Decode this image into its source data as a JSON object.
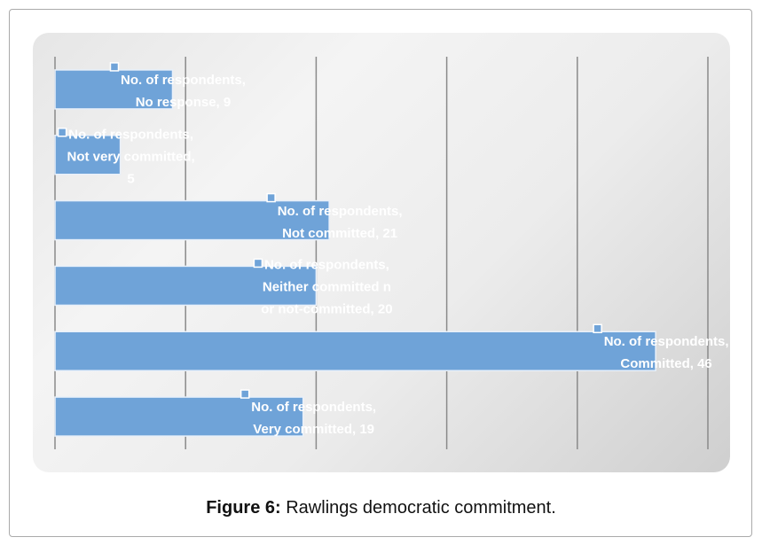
{
  "chart_data": {
    "type": "bar",
    "orientation": "horizontal",
    "values": [
      9,
      5,
      21,
      20,
      46,
      19
    ],
    "value_labels": [
      "No. of respondents, No response, 9",
      "No. of respondents, Not very committed, 5",
      "No. of respondents, Not committed, 21",
      "No. of respondents, Neither committed nor not-committed, 20",
      "No. of respondents, Committed, 46",
      "No. of respondents, Very committed, 19"
    ],
    "color": "#6fa3d8",
    "xlim": [
      0,
      50
    ],
    "xticks": [
      0,
      10,
      20,
      30,
      40,
      50
    ],
    "grid": true
  },
  "caption": {
    "label": "Figure 6:",
    "text": "Rawlings democratic commitment."
  }
}
